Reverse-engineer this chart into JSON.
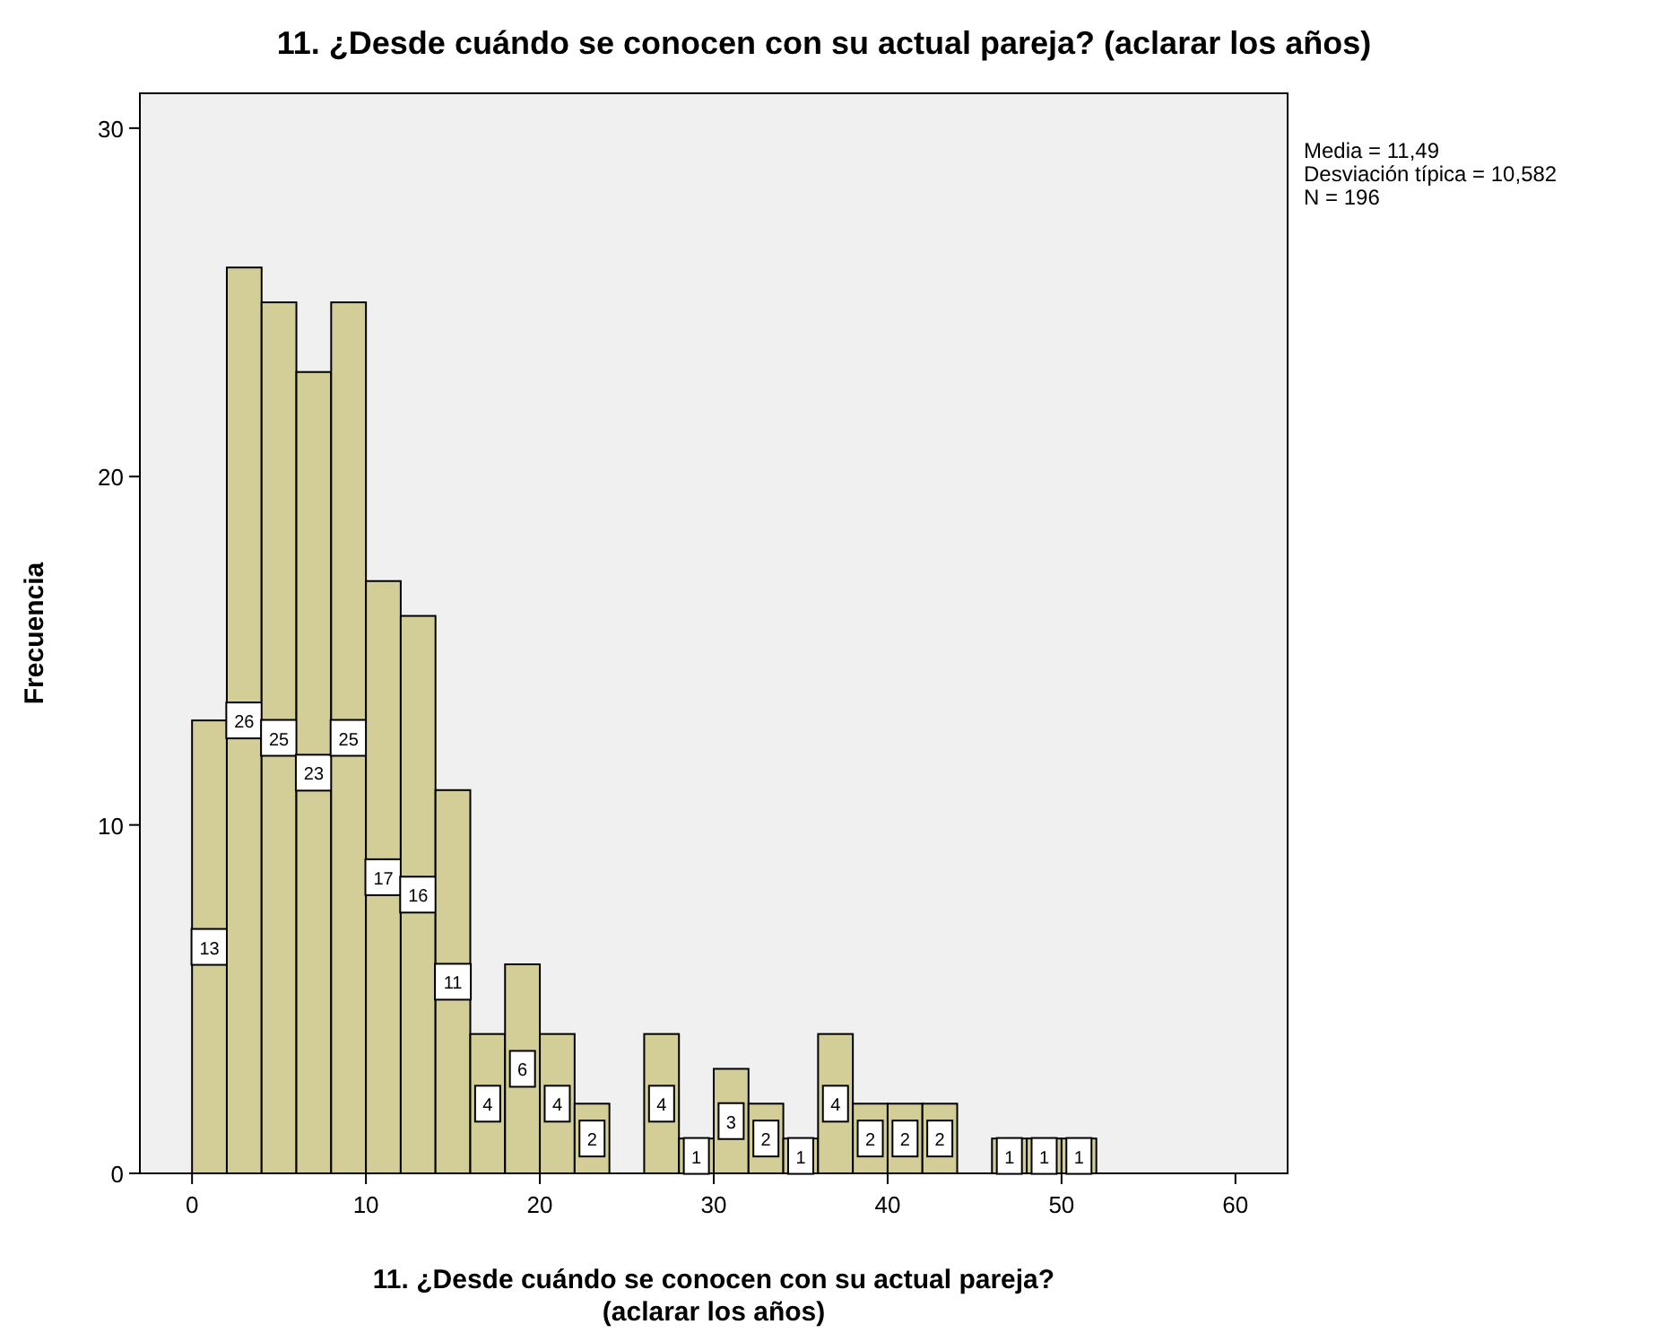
{
  "chart_data": {
    "type": "histogram",
    "title": "11. ¿Desde cuándo se conocen con su actual pareja? (aclarar los años)",
    "xlabel": "11. ¿Desde cuándo se conocen con su actual pareja? (aclarar los años)",
    "ylabel": "Frecuencia",
    "bins": [
      0,
      2,
      4,
      6,
      8,
      10,
      12,
      14,
      16,
      18,
      20,
      22,
      24,
      26,
      28,
      30,
      32,
      34,
      36,
      38,
      40,
      42,
      44,
      46,
      48,
      50,
      52
    ],
    "values": [
      13,
      26,
      25,
      23,
      25,
      17,
      16,
      11,
      4,
      6,
      4,
      2,
      0,
      4,
      1,
      3,
      2,
      1,
      4,
      2,
      2,
      2,
      0,
      1,
      1,
      1
    ],
    "value_labels": [
      "13",
      "26",
      "25",
      "23",
      "25",
      "17",
      "16",
      "11",
      "4",
      "6",
      "4",
      "2",
      null,
      "4",
      "1",
      "3",
      "2",
      "1",
      "4",
      "2",
      "2",
      "2",
      null,
      "1",
      "1",
      "1"
    ],
    "color": "#d3ce97",
    "xlim": [
      -3,
      63
    ],
    "xticks": [
      0,
      10,
      20,
      30,
      40,
      50,
      60
    ],
    "ylim": [
      0,
      31
    ],
    "yticks": [
      0,
      10,
      20,
      30
    ],
    "annotations": [
      "Media = 11,49",
      "Desviación típica = 10,582",
      "N = 196"
    ]
  }
}
